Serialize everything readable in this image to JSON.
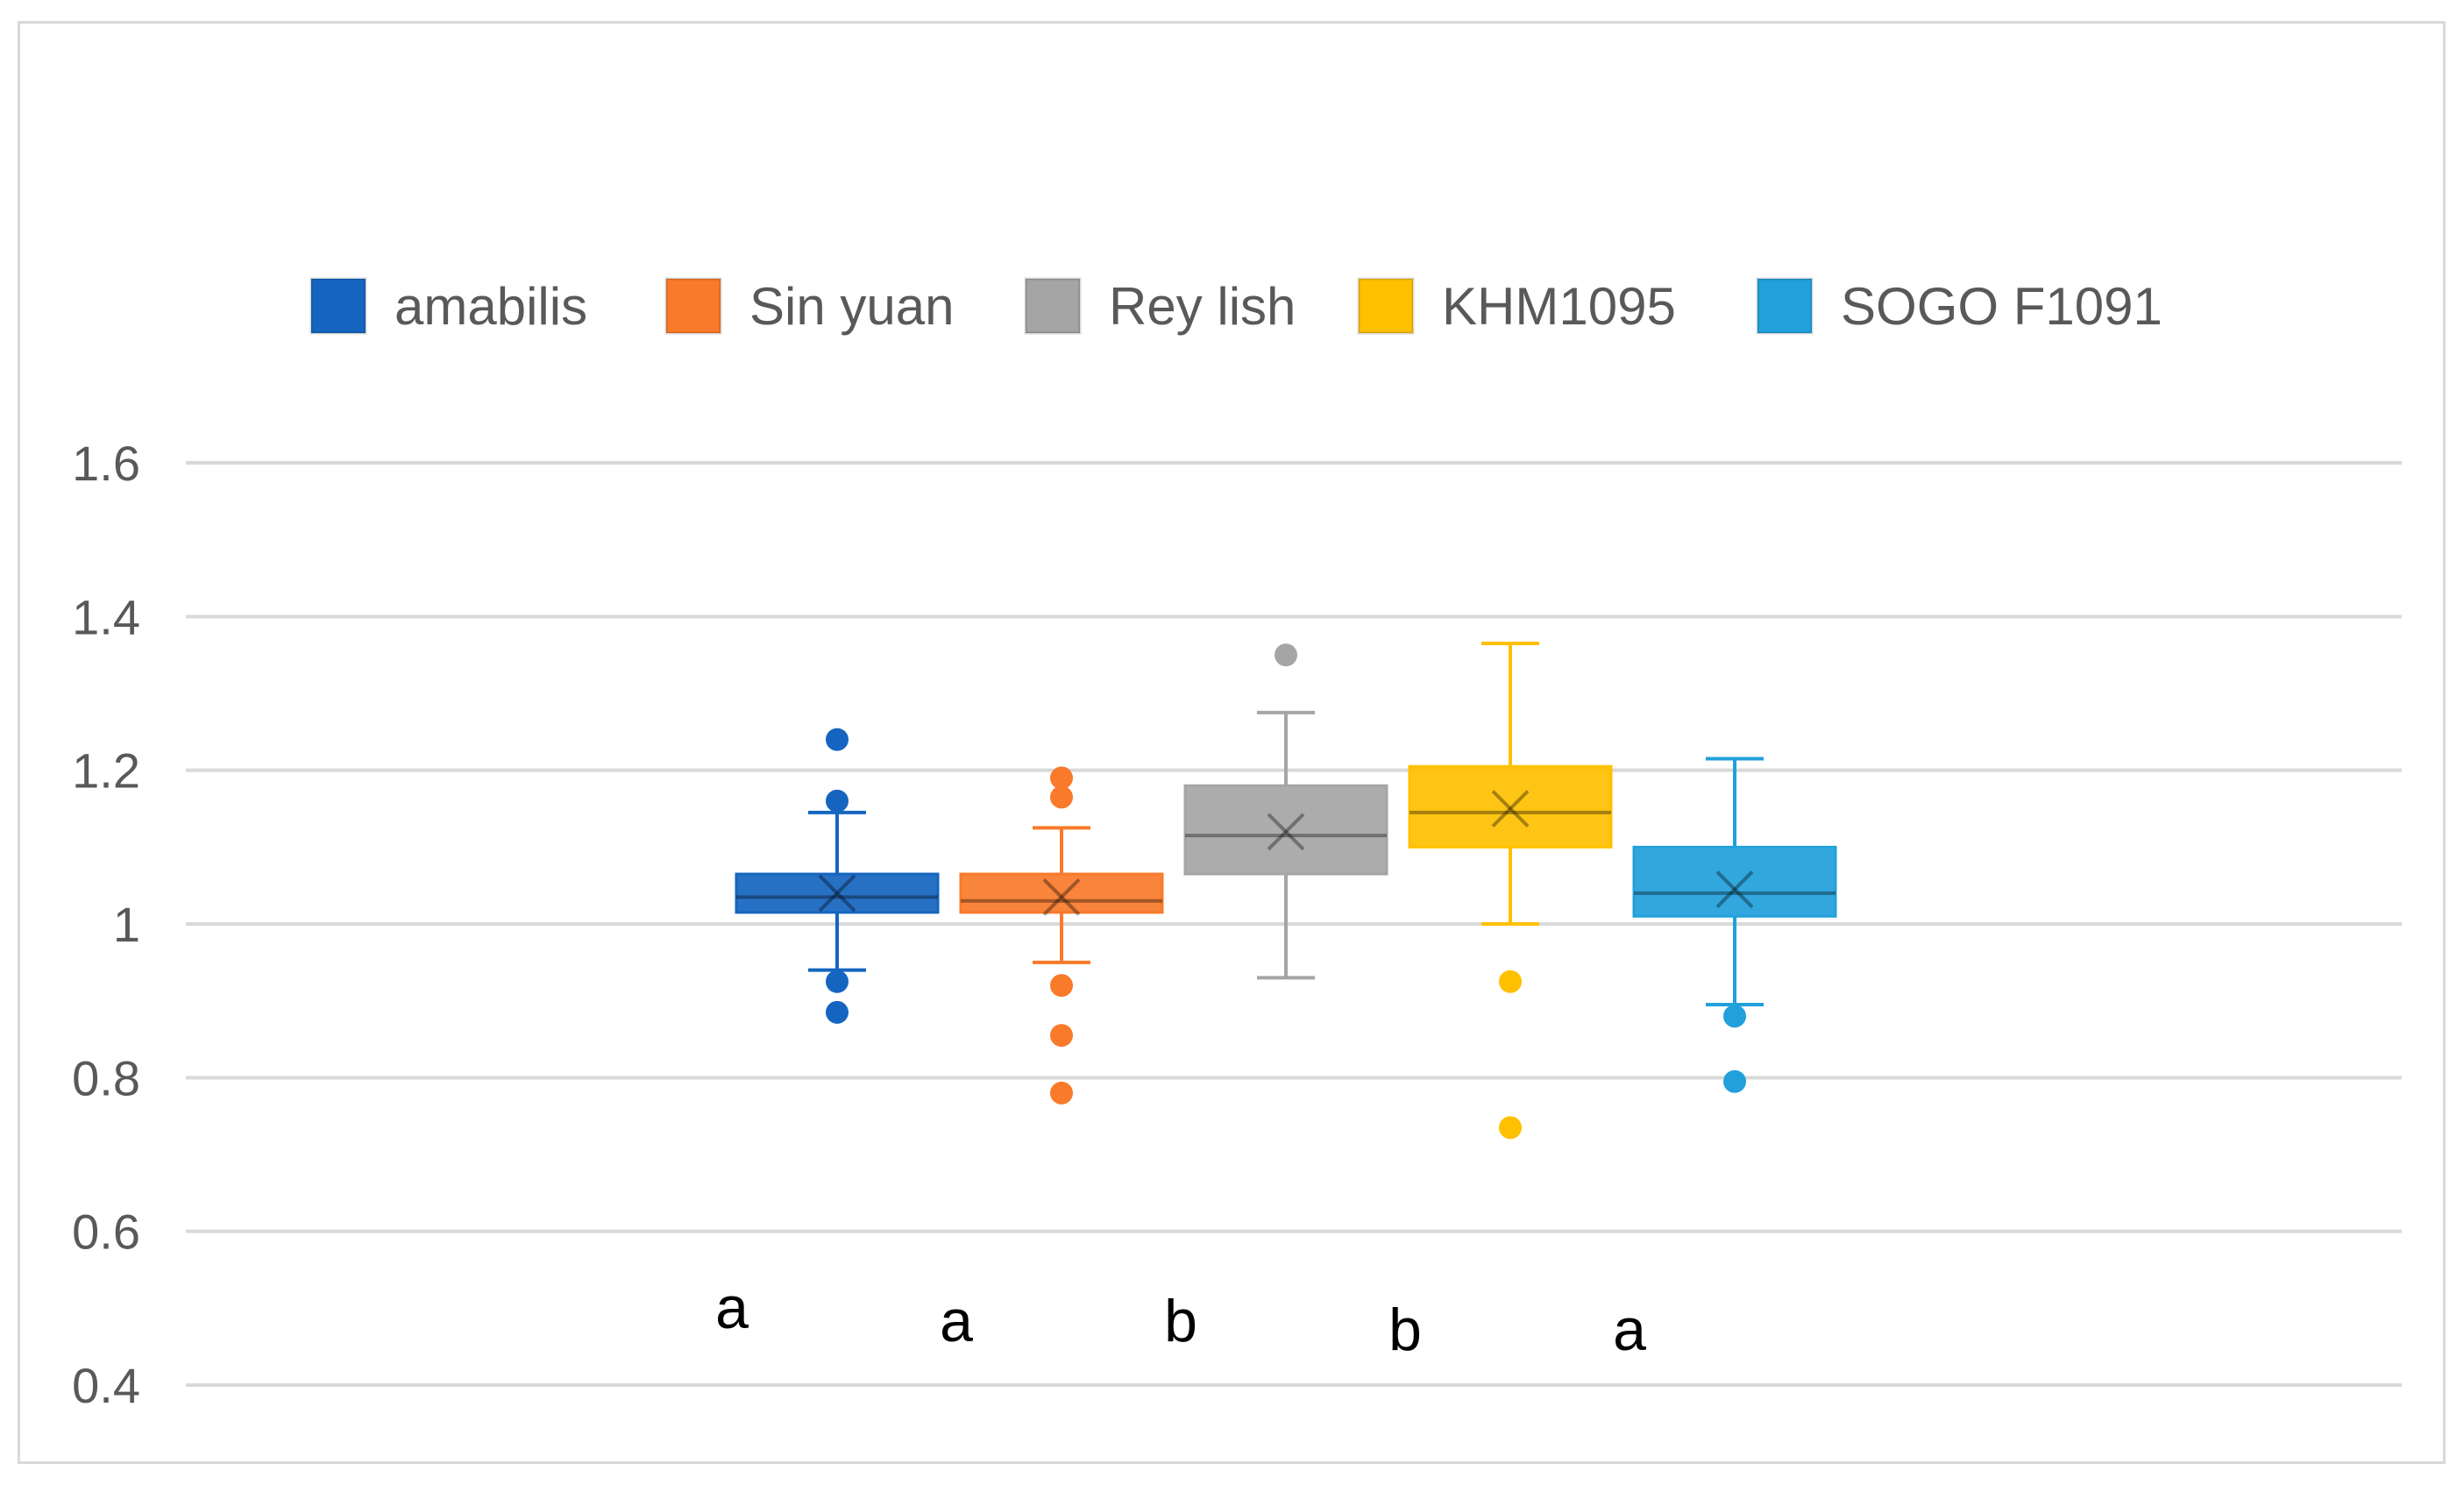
{
  "chart_data": {
    "type": "boxplot",
    "title": "",
    "xlabel": "",
    "ylabel": "",
    "ylim": [
      0.4,
      1.6
    ],
    "yticks": [
      {
        "value": 0.4,
        "label": "0.4"
      },
      {
        "value": 0.6,
        "label": "0.6"
      },
      {
        "value": 0.8,
        "label": "0.8"
      },
      {
        "value": 1.0,
        "label": "1"
      },
      {
        "value": 1.2,
        "label": "1.2"
      },
      {
        "value": 1.4,
        "label": "1.4"
      },
      {
        "value": 1.6,
        "label": "1.6"
      }
    ],
    "grid": true,
    "legend_position": "top-center",
    "series": [
      {
        "name": "amabilis",
        "color": "#1565C0",
        "min": 0.94,
        "q1": 1.015,
        "median": 1.035,
        "q3": 1.065,
        "max": 1.145,
        "mean": 1.04,
        "outliers": [
          1.24,
          1.16,
          0.925,
          0.885
        ],
        "significance": "a"
      },
      {
        "name": "Sin yuan",
        "color": "#F97A2A",
        "min": 0.95,
        "q1": 1.015,
        "median": 1.03,
        "q3": 1.065,
        "max": 1.125,
        "mean": 1.035,
        "outliers": [
          1.19,
          1.165,
          0.92,
          0.855,
          0.78
        ],
        "significance": "a"
      },
      {
        "name": "Rey lish",
        "color": "#A5A5A5",
        "min": 0.93,
        "q1": 1.065,
        "median": 1.115,
        "q3": 1.18,
        "max": 1.275,
        "mean": 1.12,
        "outliers": [
          1.35
        ],
        "significance": "b"
      },
      {
        "name": "KHM1095",
        "color": "#FFC000",
        "min": 1.0,
        "q1": 1.1,
        "median": 1.145,
        "q3": 1.205,
        "max": 1.365,
        "mean": 1.15,
        "outliers": [
          0.925,
          0.735
        ],
        "significance": "b"
      },
      {
        "name": "SOGO F1091",
        "color": "#21A0DB",
        "min": 0.895,
        "q1": 1.01,
        "median": 1.04,
        "q3": 1.1,
        "max": 1.215,
        "mean": 1.045,
        "outliers": [
          0.88,
          0.795
        ],
        "significance": "a"
      }
    ]
  }
}
